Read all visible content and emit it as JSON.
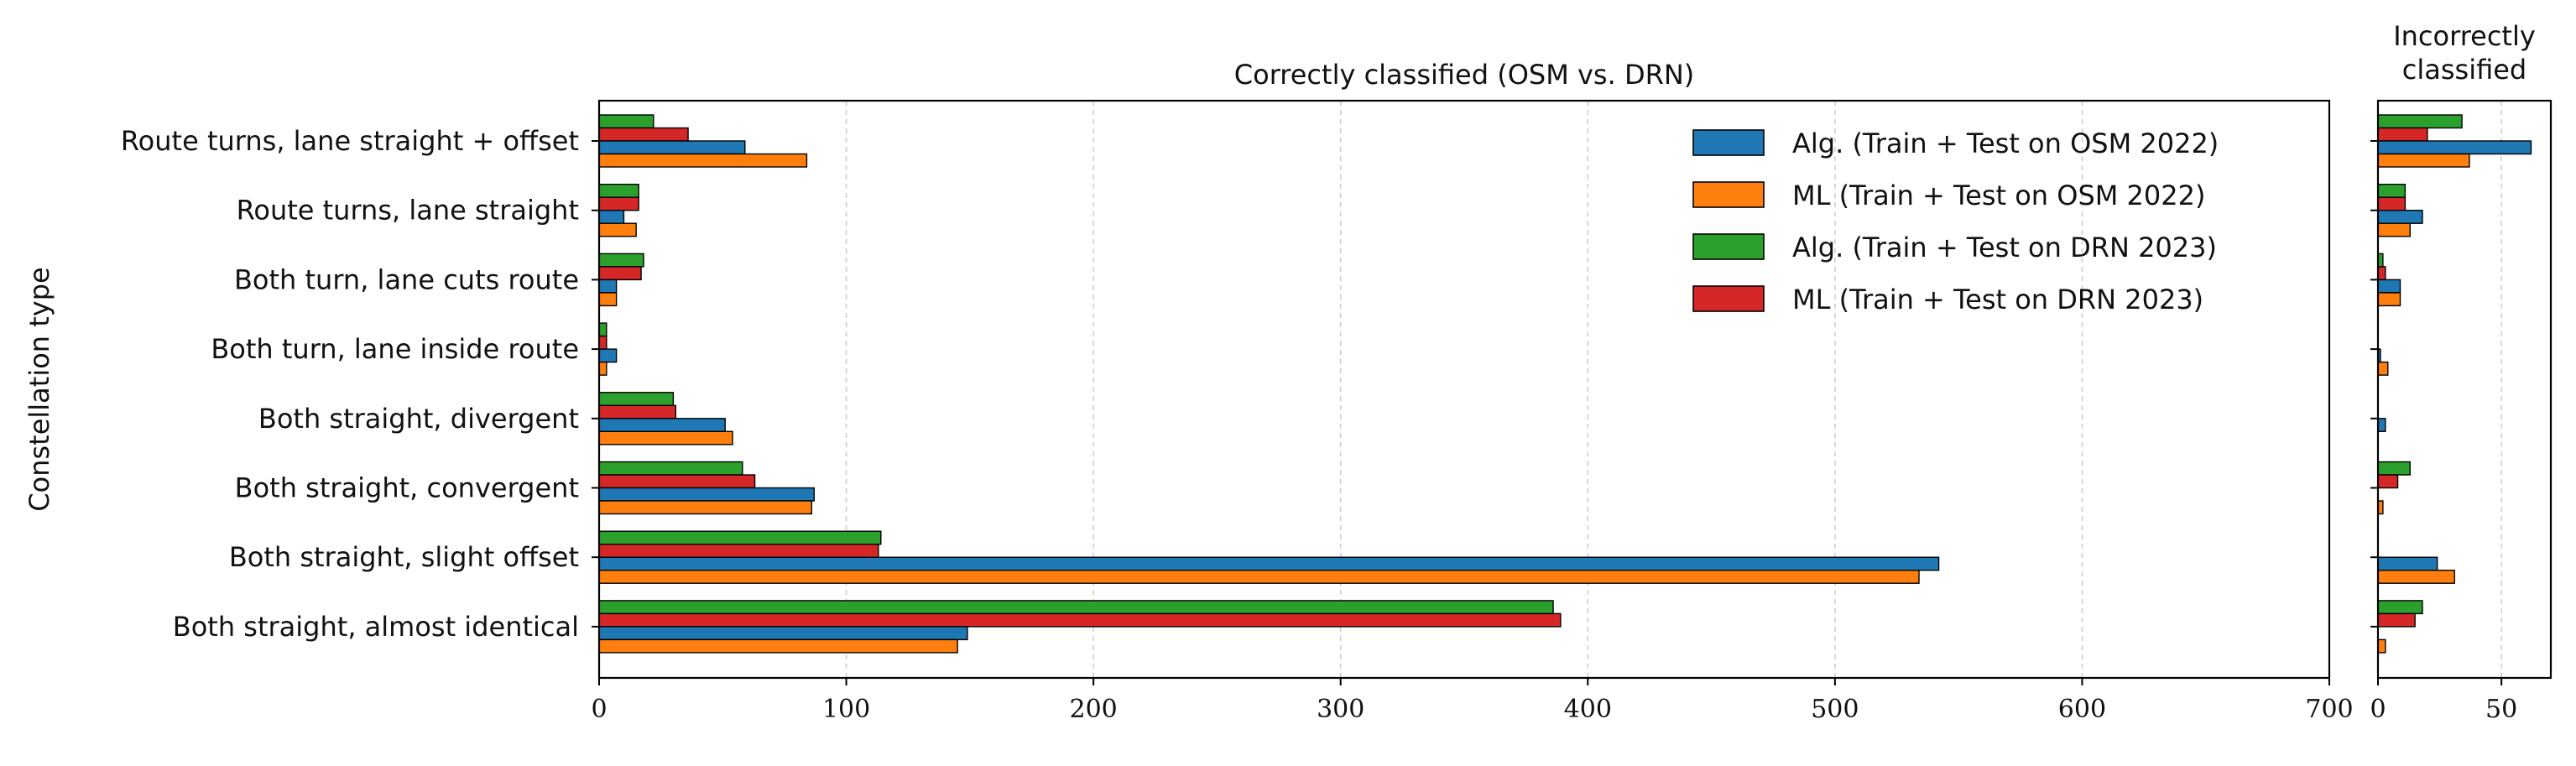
{
  "chart_data": [
    {
      "type": "bar",
      "orientation": "horizontal",
      "title": "Correctly classified (OSM vs. DRN)",
      "ylabel": "Constellation type",
      "xlabel": "",
      "xlim": [
        0,
        700
      ],
      "xticks": [
        0,
        100,
        200,
        300,
        400,
        500,
        600,
        700
      ],
      "grid": "x-dashed",
      "legend_placement": "top-right",
      "categories": [
        "Route turns, lane straight + offset",
        "Route turns, lane straight",
        "Both turn, lane cuts route",
        "Both turn, lane inside route",
        "Both straight, divergent",
        "Both straight, convergent",
        "Both straight, slight offset",
        "Both straight, almost identical"
      ],
      "series": [
        {
          "name": "Alg. (Train + Test on DRN 2023)",
          "color": "#2ca02c",
          "values": [
            22,
            16,
            18,
            3,
            30,
            58,
            114,
            386
          ]
        },
        {
          "name": "ML (Train + Test on DRN 2023)",
          "color": "#d62728",
          "values": [
            36,
            16,
            17,
            3,
            31,
            63,
            113,
            389
          ]
        },
        {
          "name": "Alg. (Train + Test on OSM 2022)",
          "color": "#1f77b4",
          "values": [
            59,
            10,
            7,
            7,
            51,
            87,
            542,
            149
          ]
        },
        {
          "name": "ML (Train + Test on OSM 2022)",
          "color": "#ff7f0e",
          "values": [
            84,
            15,
            7,
            3,
            54,
            86,
            534,
            145
          ]
        }
      ],
      "legend_order": [
        2,
        3,
        0,
        1
      ]
    },
    {
      "type": "bar",
      "orientation": "horizontal",
      "title_lines": [
        "Incorrectly",
        "classified"
      ],
      "xlim": [
        0,
        70
      ],
      "xticks": [
        0,
        50
      ],
      "grid": "x-dashed",
      "series": [
        {
          "name": "Alg. (Train + Test on DRN 2023)",
          "color": "#2ca02c",
          "values": [
            34,
            11,
            2,
            0,
            0,
            13,
            0,
            18
          ]
        },
        {
          "name": "ML (Train + Test on DRN 2023)",
          "color": "#d62728",
          "values": [
            20,
            11,
            3,
            0,
            0,
            8,
            0,
            15
          ]
        },
        {
          "name": "Alg. (Train + Test on OSM 2022)",
          "color": "#1f77b4",
          "values": [
            62,
            18,
            9,
            1,
            3,
            0,
            24,
            0
          ]
        },
        {
          "name": "ML (Train + Test on OSM 2022)",
          "color": "#ff7f0e",
          "values": [
            37,
            13,
            9,
            4,
            0,
            2,
            31,
            3
          ]
        }
      ]
    }
  ]
}
